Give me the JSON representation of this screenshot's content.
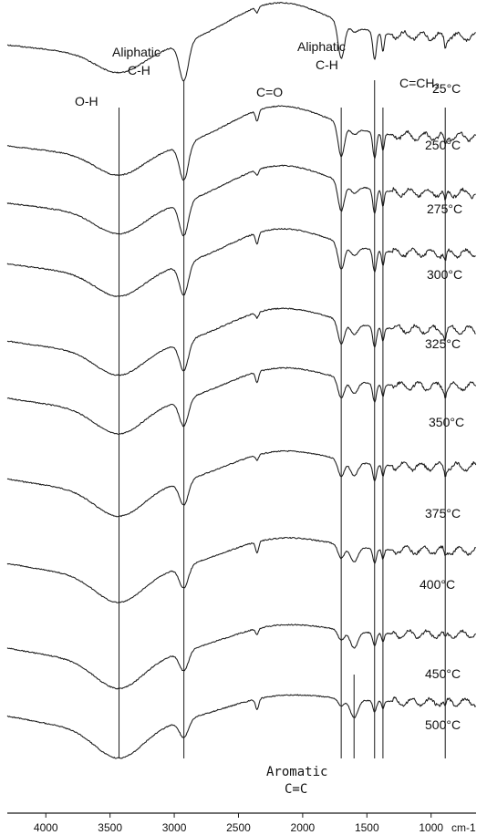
{
  "chart_data": {
    "type": "line",
    "title": "",
    "xlabel": "cm-1",
    "ylabel": "",
    "x_reversed": true,
    "xlim": [
      4300,
      650
    ],
    "x_ticks": [
      4000,
      3500,
      3000,
      2500,
      2000,
      1500,
      1000
    ],
    "x_tick_labels": [
      "4000",
      "3500",
      "3000",
      "2500",
      "2000",
      "1500",
      "1000"
    ],
    "stacked_offset": true,
    "grid": false,
    "legend": "none",
    "series": [
      {
        "name": "25°C"
      },
      {
        "name": "250°C"
      },
      {
        "name": "275°C"
      },
      {
        "name": "300°C"
      },
      {
        "name": "325°C"
      },
      {
        "name": "350°C"
      },
      {
        "name": "375°C"
      },
      {
        "name": "400°C"
      },
      {
        "name": "450°C"
      },
      {
        "name": "500°C"
      }
    ],
    "band_markers": [
      {
        "wavenumber": 3430,
        "line1": "O-H"
      },
      {
        "wavenumber": 2925,
        "line1": "Aliphatic",
        "line2": "C-H"
      },
      {
        "wavenumber": 1700,
        "line1": "C=O"
      },
      {
        "wavenumber": 1600,
        "line1": "Aromatic",
        "line2": "C=C",
        "position": "bottom"
      },
      {
        "wavenumber": 1440,
        "line1": "Aliphatic",
        "line2": "C-H"
      },
      {
        "wavenumber": 1375
      },
      {
        "wavenumber": 890,
        "line1": "C=CH₂"
      }
    ]
  }
}
